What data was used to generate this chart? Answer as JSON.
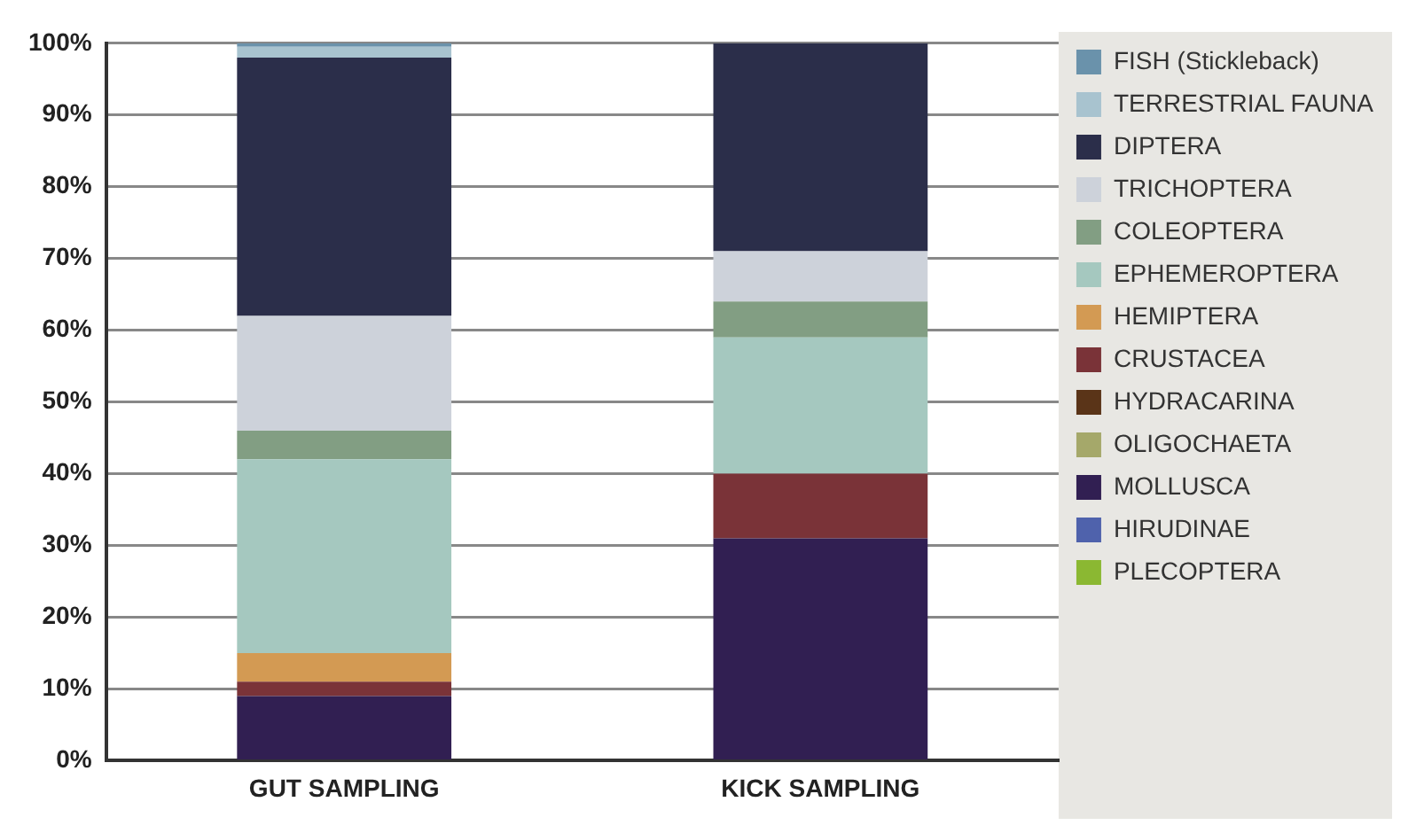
{
  "chart_data": {
    "type": "bar",
    "stacked": true,
    "categories": [
      "GUT SAMPLING",
      "KICK SAMPLING"
    ],
    "series": [
      {
        "name": "PLECOPTERA",
        "color": "#8bb832",
        "values": [
          0,
          0
        ]
      },
      {
        "name": "HIRUDINAE",
        "color": "#4f62ac",
        "values": [
          0,
          0
        ]
      },
      {
        "name": "MOLLUSCA",
        "color": "#311f52",
        "values": [
          9,
          31
        ]
      },
      {
        "name": "OLIGOCHAETA",
        "color": "#a5a86a",
        "values": [
          0,
          0
        ]
      },
      {
        "name": "HYDRACARINA",
        "color": "#5a3418",
        "values": [
          0,
          0
        ]
      },
      {
        "name": "CRUSTACEA",
        "color": "#7a3338",
        "values": [
          2,
          9
        ]
      },
      {
        "name": "HEMIPTERA",
        "color": "#d39a53",
        "values": [
          4,
          0
        ]
      },
      {
        "name": "EPHEMEROPTERA",
        "color": "#a5c8bf",
        "values": [
          27,
          19
        ]
      },
      {
        "name": "COLEOPTERA",
        "color": "#829e83",
        "values": [
          4,
          5
        ]
      },
      {
        "name": "TRICHOPTERA",
        "color": "#cdd2da",
        "values": [
          16,
          7
        ]
      },
      {
        "name": "DIPTERA",
        "color": "#2b2e4a",
        "values": [
          36,
          29
        ]
      },
      {
        "name": "TERRESTRIAL FAUNA",
        "color": "#a8c3cf",
        "values": [
          1.5,
          0
        ]
      },
      {
        "name": "FISH (Stickleback)",
        "color": "#6a92ab",
        "values": [
          0.5,
          0
        ]
      }
    ],
    "ylim": [
      0,
      100
    ],
    "yticks": [
      {
        "value": 0,
        "label": "0%"
      },
      {
        "value": 10,
        "label": "10%"
      },
      {
        "value": 20,
        "label": "20%"
      },
      {
        "value": 30,
        "label": "30%"
      },
      {
        "value": 40,
        "label": "40%"
      },
      {
        "value": 50,
        "label": "50%"
      },
      {
        "value": 60,
        "label": "60%"
      },
      {
        "value": 70,
        "label": "70%"
      },
      {
        "value": 80,
        "label": "80%"
      },
      {
        "value": 90,
        "label": "90%"
      },
      {
        "value": 100,
        "label": "100%"
      }
    ],
    "grid": "y",
    "legend": "right"
  }
}
